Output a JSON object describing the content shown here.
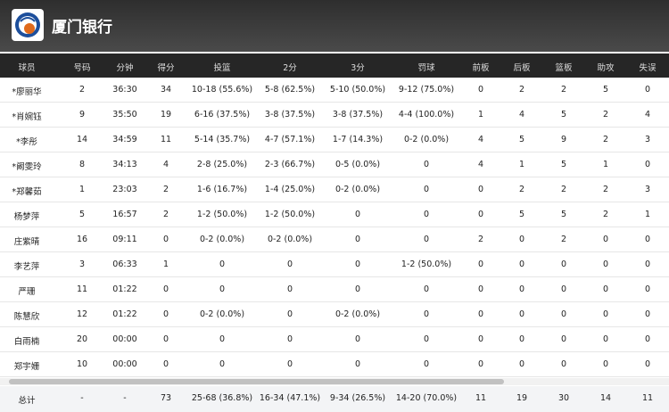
{
  "header": {
    "title": "厦门银行"
  },
  "table": {
    "columns": [
      "球员",
      "号码",
      "分钟",
      "得分",
      "投篮",
      "2分",
      "3分",
      "罚球",
      "前板",
      "后板",
      "篮板",
      "助攻",
      "失误"
    ],
    "rows": [
      [
        "*廖丽华",
        "2",
        "36:30",
        "34",
        "10-18 (55.6%)",
        "5-8 (62.5%)",
        "5-10 (50.0%)",
        "9-12 (75.0%)",
        "0",
        "2",
        "2",
        "5",
        "0"
      ],
      [
        "*肖婉钰",
        "9",
        "35:50",
        "19",
        "6-16 (37.5%)",
        "3-8 (37.5%)",
        "3-8 (37.5%)",
        "4-4 (100.0%)",
        "1",
        "4",
        "5",
        "2",
        "4"
      ],
      [
        "*李彤",
        "14",
        "34:59",
        "11",
        "5-14 (35.7%)",
        "4-7 (57.1%)",
        "1-7 (14.3%)",
        "0-2 (0.0%)",
        "4",
        "5",
        "9",
        "2",
        "3"
      ],
      [
        "*阚雯玲",
        "8",
        "34:13",
        "4",
        "2-8 (25.0%)",
        "2-3 (66.7%)",
        "0-5 (0.0%)",
        "0",
        "4",
        "1",
        "5",
        "1",
        "0"
      ],
      [
        "*郑馨茹",
        "1",
        "23:03",
        "2",
        "1-6 (16.7%)",
        "1-4 (25.0%)",
        "0-2 (0.0%)",
        "0",
        "0",
        "2",
        "2",
        "2",
        "3"
      ],
      [
        "杨梦萍",
        "5",
        "16:57",
        "2",
        "1-2 (50.0%)",
        "1-2 (50.0%)",
        "0",
        "0",
        "0",
        "5",
        "5",
        "2",
        "1"
      ],
      [
        "庄紫晴",
        "16",
        "09:11",
        "0",
        "0-2 (0.0%)",
        "0-2 (0.0%)",
        "0",
        "0",
        "2",
        "0",
        "2",
        "0",
        "0"
      ],
      [
        "李艺萍",
        "3",
        "06:33",
        "1",
        "0",
        "0",
        "0",
        "1-2 (50.0%)",
        "0",
        "0",
        "0",
        "0",
        "0"
      ],
      [
        "严珊",
        "11",
        "01:22",
        "0",
        "0",
        "0",
        "0",
        "0",
        "0",
        "0",
        "0",
        "0",
        "0"
      ],
      [
        "陈慧欣",
        "12",
        "01:22",
        "0",
        "0-2 (0.0%)",
        "0",
        "0-2 (0.0%)",
        "0",
        "0",
        "0",
        "0",
        "0",
        "0"
      ],
      [
        "白雨楠",
        "20",
        "00:00",
        "0",
        "0",
        "0",
        "0",
        "0",
        "0",
        "0",
        "0",
        "0",
        "0"
      ],
      [
        "郑宇姗",
        "10",
        "00:00",
        "0",
        "0",
        "0",
        "0",
        "0",
        "0",
        "0",
        "0",
        "0",
        "0"
      ]
    ],
    "total": [
      "总计",
      "-",
      "-",
      "73",
      "25-68 (36.8%)",
      "16-34 (47.1%)",
      "9-34 (26.5%)",
      "14-20 (70.0%)",
      "11",
      "19",
      "30",
      "14",
      "11"
    ]
  }
}
